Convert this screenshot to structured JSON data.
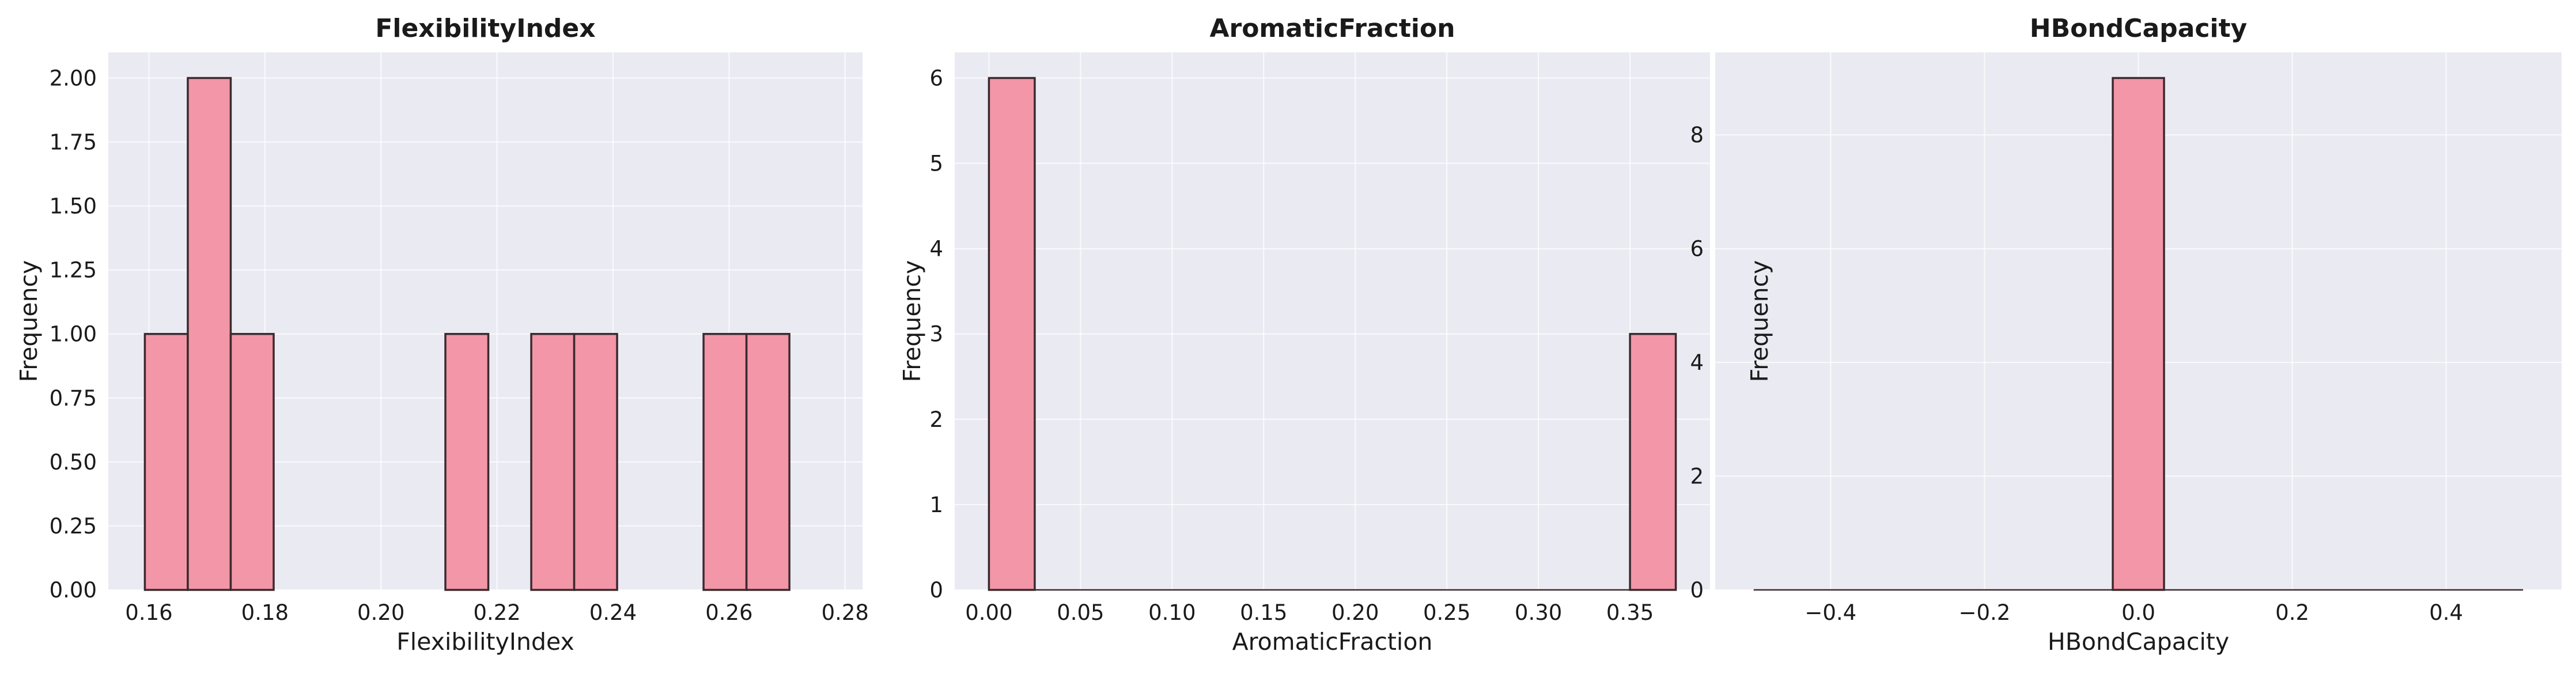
{
  "chart_data": [
    {
      "type": "bar",
      "title": "FlexibilityIndex",
      "xlabel": "FlexibilityIndex",
      "ylabel": "Frequency",
      "xlim": [
        0.153,
        0.283
      ],
      "ylim": [
        0,
        2.1
      ],
      "xticks": [
        0.16,
        0.18,
        0.2,
        0.22,
        0.24,
        0.26,
        0.28
      ],
      "xtick_labels": [
        "0.16",
        "0.18",
        "0.20",
        "0.22",
        "0.24",
        "0.26",
        "0.28"
      ],
      "yticks": [
        0,
        0.25,
        0.5,
        0.75,
        1.0,
        1.25,
        1.5,
        1.75,
        2.0
      ],
      "ytick_labels": [
        "0.00",
        "0.25",
        "0.50",
        "0.75",
        "1.00",
        "1.25",
        "1.50",
        "1.75",
        "2.00"
      ],
      "bins": [
        {
          "x0": 0.1593,
          "x1": 0.1667,
          "count": 1
        },
        {
          "x0": 0.1667,
          "x1": 0.1741,
          "count": 2
        },
        {
          "x0": 0.1741,
          "x1": 0.1815,
          "count": 1
        },
        {
          "x0": 0.2111,
          "x1": 0.2185,
          "count": 1
        },
        {
          "x0": 0.2259,
          "x1": 0.2333,
          "count": 1
        },
        {
          "x0": 0.2333,
          "x1": 0.2407,
          "count": 1
        },
        {
          "x0": 0.2556,
          "x1": 0.263,
          "count": 1
        },
        {
          "x0": 0.263,
          "x1": 0.2704,
          "count": 1
        }
      ],
      "grid": true
    },
    {
      "type": "bar",
      "title": "AromaticFraction",
      "xlabel": "AromaticFraction",
      "ylabel": "Frequency",
      "xlim": [
        -0.0187,
        0.3937
      ],
      "ylim": [
        0,
        6.3
      ],
      "xticks": [
        0.0,
        0.05,
        0.1,
        0.15,
        0.2,
        0.25,
        0.3,
        0.35
      ],
      "xtick_labels": [
        "0.00",
        "0.05",
        "0.10",
        "0.15",
        "0.20",
        "0.25",
        "0.30",
        "0.35"
      ],
      "yticks": [
        0,
        1,
        2,
        3,
        4,
        5,
        6
      ],
      "ytick_labels": [
        "0",
        "1",
        "2",
        "3",
        "4",
        "5",
        "6"
      ],
      "bins": [
        {
          "x0": 0.0,
          "x1": 0.025,
          "count": 6
        },
        {
          "x0": 0.35,
          "x1": 0.375,
          "count": 3
        }
      ],
      "baseline": [
        0.0,
        0.375
      ],
      "grid": true
    },
    {
      "type": "bar",
      "title": "HBondCapacity",
      "xlabel": "HBondCapacity",
      "ylabel": "Frequency",
      "xlim": [
        -0.55,
        0.55
      ],
      "ylim": [
        0,
        9.45
      ],
      "xticks": [
        -0.4,
        -0.2,
        0.0,
        0.2,
        0.4
      ],
      "xtick_labels": [
        "−0.4",
        "−0.2",
        "0.0",
        "0.2",
        "0.4"
      ],
      "yticks": [
        0,
        2,
        4,
        6,
        8
      ],
      "ytick_labels": [
        "0",
        "2",
        "4",
        "6",
        "8"
      ],
      "bins": [
        {
          "x0": -0.0333,
          "x1": 0.0333,
          "count": 9
        }
      ],
      "baseline": [
        -0.5,
        0.5
      ],
      "grid": true
    }
  ],
  "colors": {
    "plot_bg": "#EAEAF2",
    "grid": "#FFFFFF",
    "bar_fill": "#F396A8",
    "bar_edge": "#3A2A2E",
    "text": "#1A1A1A"
  }
}
